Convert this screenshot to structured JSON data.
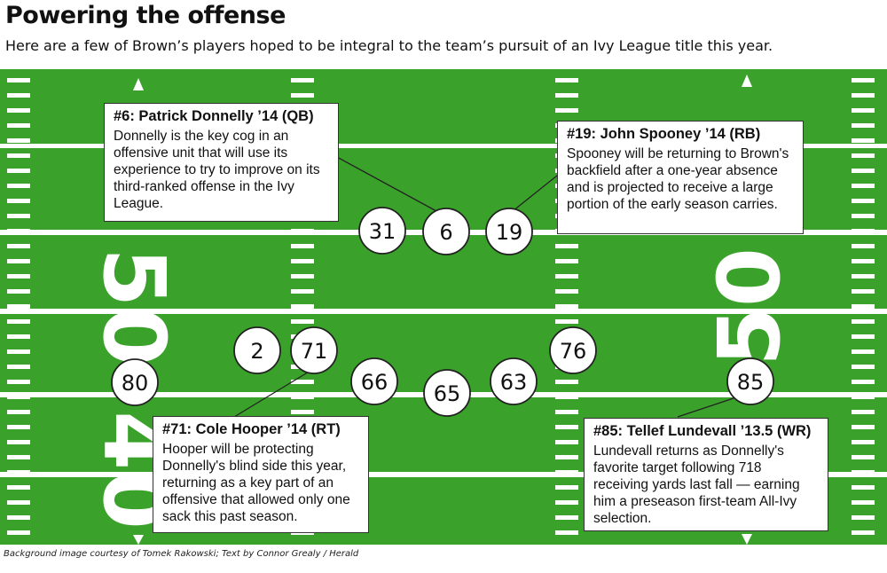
{
  "header": {
    "title": "Powering the offense",
    "subtitle": "Here are a few of Brown’s players hoped to be integral to the team’s pursuit of an Ivy League title this year."
  },
  "colors": {
    "field_green": "#3aa22a",
    "line_white": "#ffffff",
    "callout_border": "#333333",
    "player_fill": "#ffffff"
  },
  "field": {
    "yard_numbers": [
      "50",
      "40",
      "50"
    ]
  },
  "players": [
    {
      "number": "31"
    },
    {
      "number": "6"
    },
    {
      "number": "19"
    },
    {
      "number": "2"
    },
    {
      "number": "71"
    },
    {
      "number": "76"
    },
    {
      "number": "80"
    },
    {
      "number": "66"
    },
    {
      "number": "65"
    },
    {
      "number": "63"
    },
    {
      "number": "85"
    }
  ],
  "callouts": {
    "donnelly": {
      "title": "#6: Patrick Donnelly ’14 (QB)",
      "body": "Donnelly is the key cog in an offensive unit that will use its experience to try to improve on its third-ranked offense in the Ivy League."
    },
    "spooney": {
      "title": "#19: John Spooney ’14 (RB)",
      "body": "Spooney will be returning to Brown's backfield after a one-year absence and is projected to receive a large portion of the early season carries."
    },
    "hooper": {
      "title": "#71: Cole Hooper ’14 (RT)",
      "body": "Hooper will be protecting Donnelly's blind side this year, returning as a key part of an offensive that allowed only one sack this past season."
    },
    "lundevall": {
      "title": "#85: Tellef Lundevall ’13.5 (WR)",
      "body": "Lundevall returns as Donnelly's favorite target following 718 receiving yards last fall — earning him a preseason first-team All-Ivy selection."
    }
  },
  "credit": "Background image courtesy of Tomek Rakowski; Text by Connor Grealy / Herald"
}
